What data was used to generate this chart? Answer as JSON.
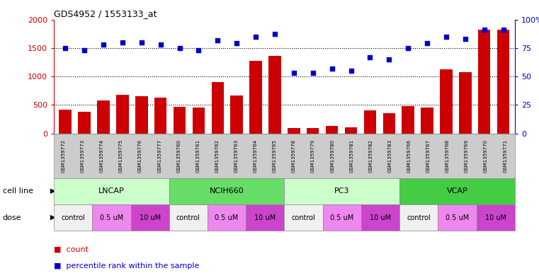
{
  "title": "GDS4952 / 1553133_at",
  "samples": [
    "GSM1359772",
    "GSM1359773",
    "GSM1359774",
    "GSM1359775",
    "GSM1359776",
    "GSM1359777",
    "GSM1359760",
    "GSM1359761",
    "GSM1359762",
    "GSM1359763",
    "GSM1359764",
    "GSM1359765",
    "GSM1359778",
    "GSM1359779",
    "GSM1359780",
    "GSM1359781",
    "GSM1359782",
    "GSM1359783",
    "GSM1359766",
    "GSM1359767",
    "GSM1359768",
    "GSM1359769",
    "GSM1359770",
    "GSM1359771"
  ],
  "counts": [
    420,
    375,
    580,
    680,
    650,
    630,
    470,
    455,
    900,
    660,
    1280,
    1360,
    100,
    90,
    130,
    110,
    400,
    360,
    480,
    460,
    1130,
    1080,
    1820,
    1820
  ],
  "percentiles": [
    75,
    73,
    78,
    80,
    80,
    78,
    75,
    73,
    82,
    79,
    85,
    87,
    53,
    53,
    57,
    55,
    67,
    65,
    75,
    79,
    85,
    83,
    91,
    91
  ],
  "bar_color": "#cc0000",
  "dot_color": "#0000cc",
  "cell_lines": [
    {
      "name": "LNCAP",
      "start": 0,
      "end": 6,
      "color": "#ccffcc"
    },
    {
      "name": "NCIH660",
      "start": 6,
      "end": 12,
      "color": "#66dd66"
    },
    {
      "name": "PC3",
      "start": 12,
      "end": 18,
      "color": "#ccffcc"
    },
    {
      "name": "VCAP",
      "start": 18,
      "end": 24,
      "color": "#44cc44"
    }
  ],
  "doses": [
    {
      "name": "control",
      "start": 0,
      "end": 2,
      "color": "#f0f0f0"
    },
    {
      "name": "0.5 uM",
      "start": 2,
      "end": 4,
      "color": "#ee88ee"
    },
    {
      "name": "10 uM",
      "start": 4,
      "end": 6,
      "color": "#cc44cc"
    },
    {
      "name": "control",
      "start": 6,
      "end": 8,
      "color": "#f0f0f0"
    },
    {
      "name": "0.5 uM",
      "start": 8,
      "end": 10,
      "color": "#ee88ee"
    },
    {
      "name": "10 uM",
      "start": 10,
      "end": 12,
      "color": "#cc44cc"
    },
    {
      "name": "control",
      "start": 12,
      "end": 14,
      "color": "#f0f0f0"
    },
    {
      "name": "0.5 uM",
      "start": 14,
      "end": 16,
      "color": "#ee88ee"
    },
    {
      "name": "10 uM",
      "start": 16,
      "end": 18,
      "color": "#cc44cc"
    },
    {
      "name": "control",
      "start": 18,
      "end": 20,
      "color": "#f0f0f0"
    },
    {
      "name": "0.5 uM",
      "start": 20,
      "end": 22,
      "color": "#ee88ee"
    },
    {
      "name": "10 uM",
      "start": 22,
      "end": 24,
      "color": "#cc44cc"
    }
  ],
  "ylim_left": [
    0,
    2000
  ],
  "ylim_right": [
    0,
    100
  ],
  "yticks_left": [
    0,
    500,
    1000,
    1500,
    2000
  ],
  "yticks_right": [
    0,
    25,
    50,
    75,
    100
  ],
  "legend_count_label": "count",
  "legend_percentile_label": "percentile rank within the sample",
  "cell_line_label": "cell line",
  "dose_label": "dose",
  "xtick_bg_color": "#cccccc",
  "xborder_color": "#888888"
}
